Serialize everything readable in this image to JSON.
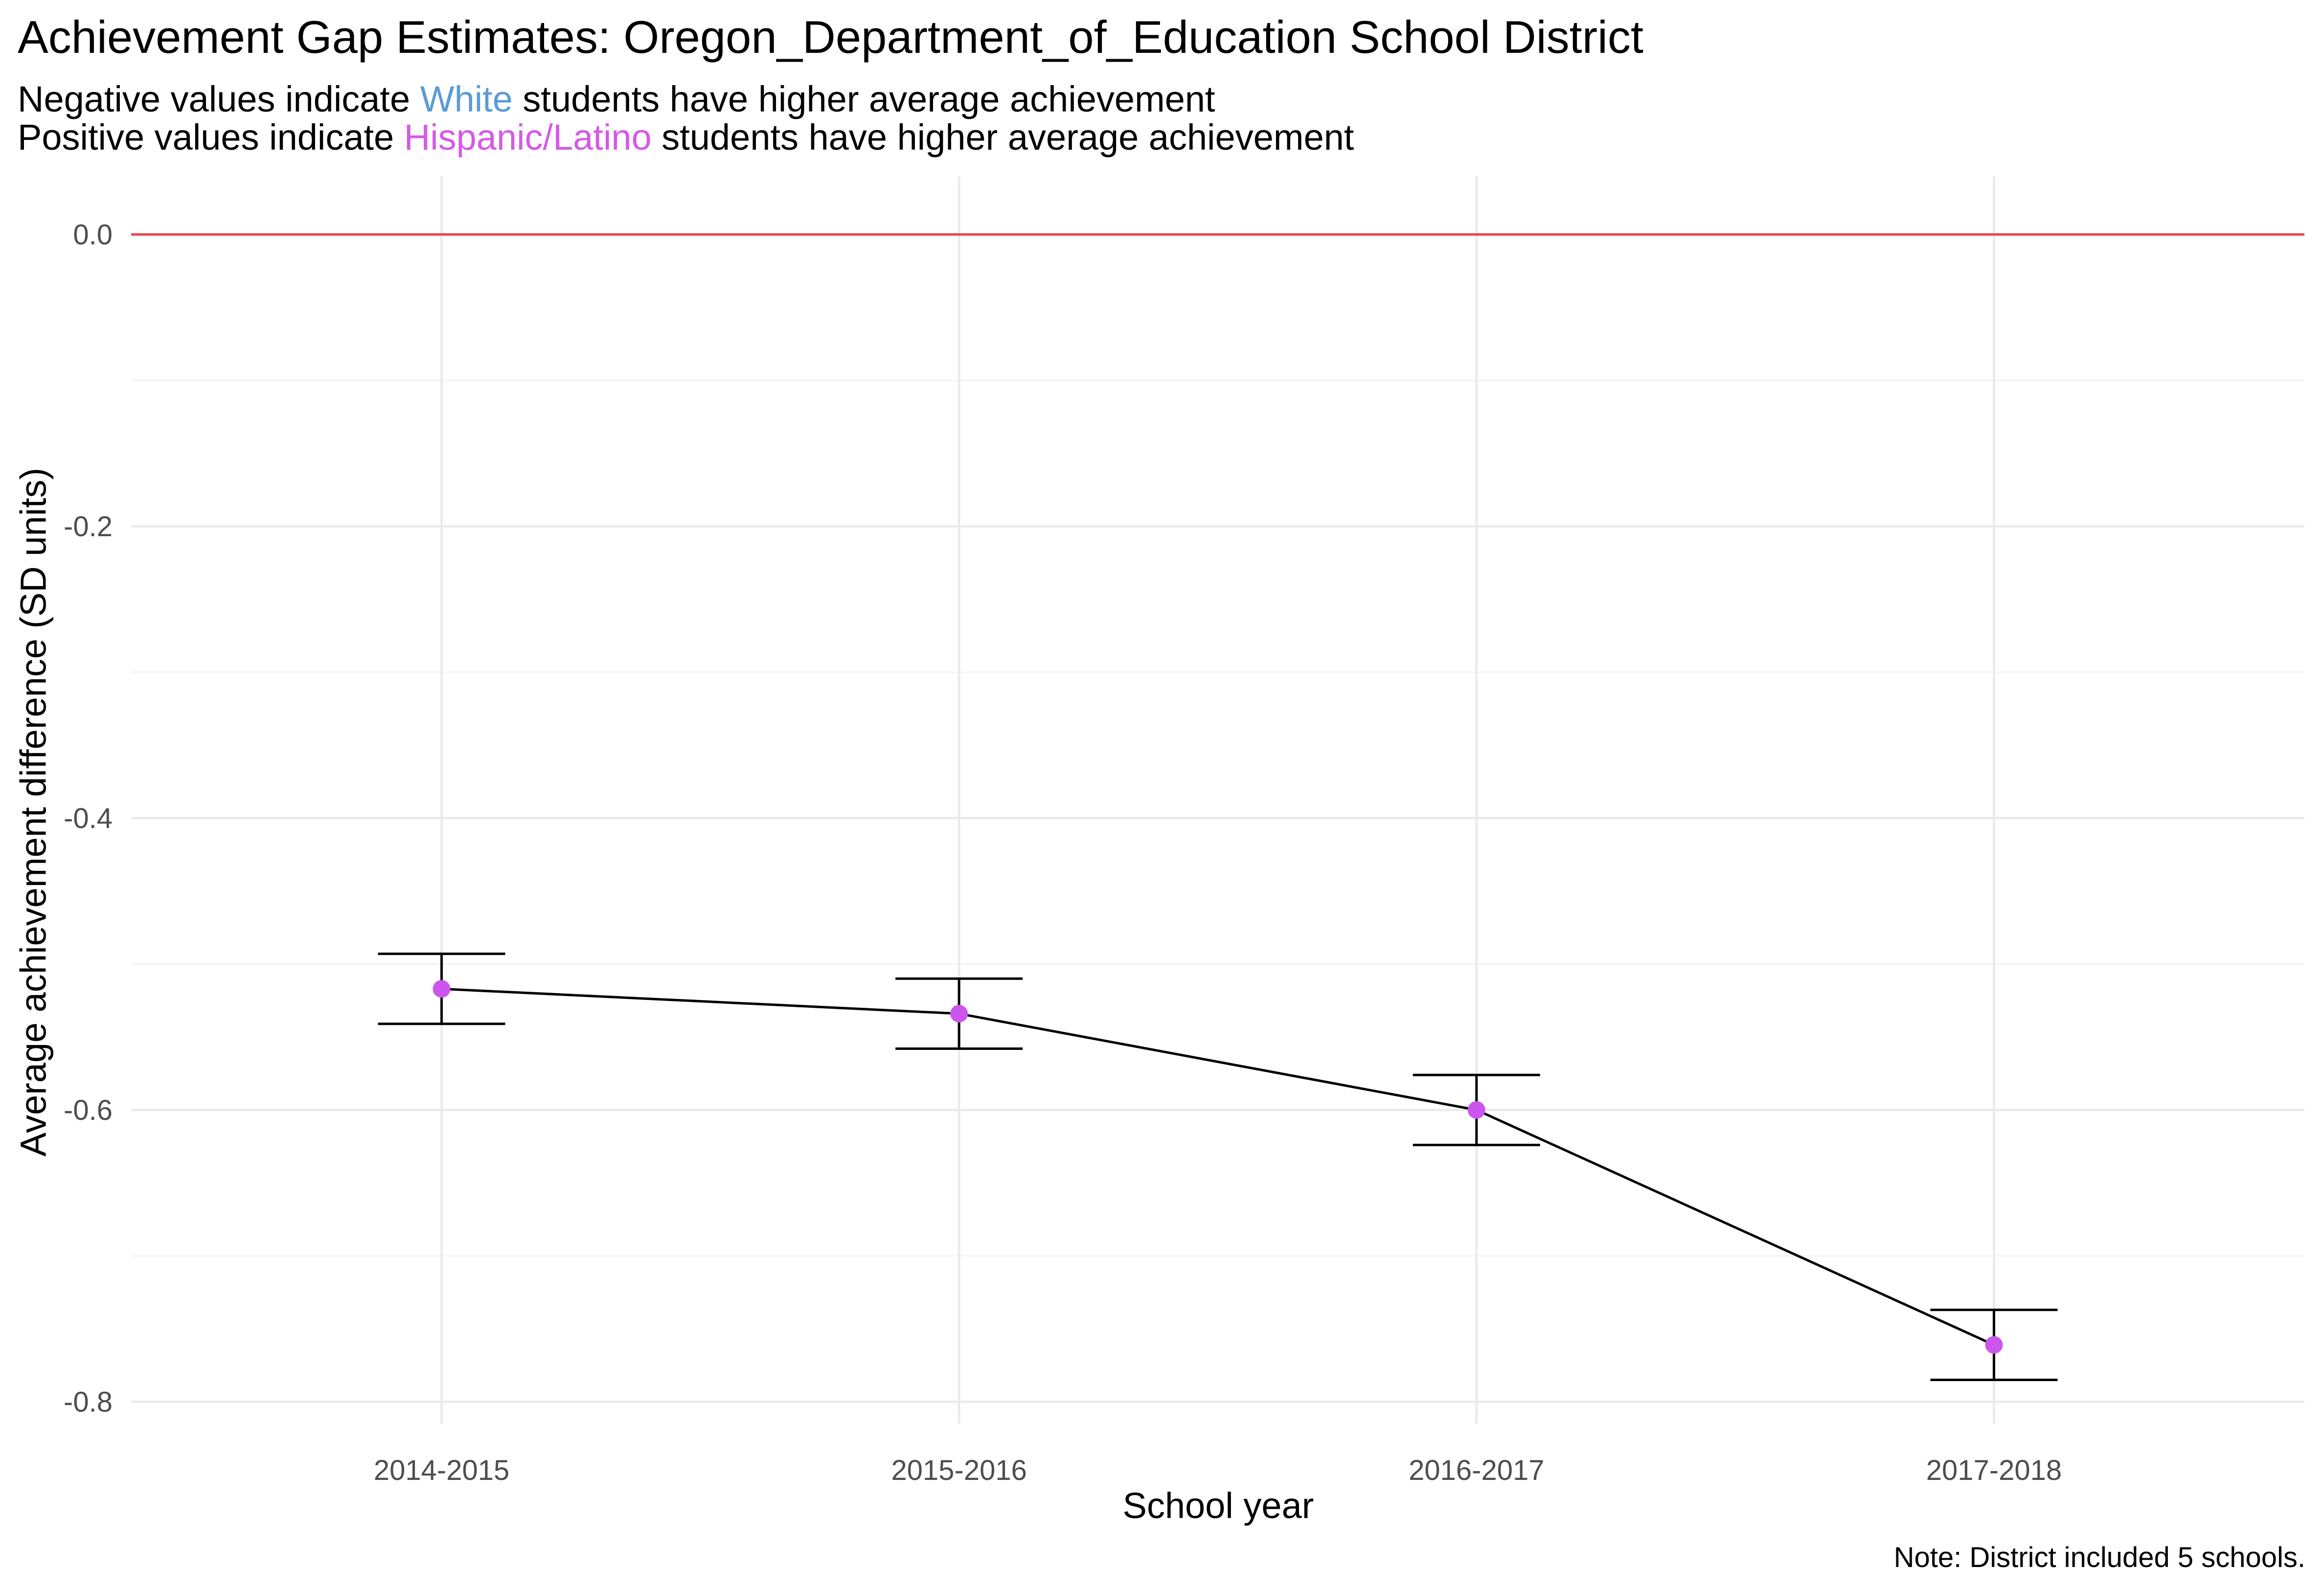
{
  "chart_data": {
    "type": "line",
    "title": "Achievement Gap Estimates: Oregon_Department_of_Education  School District",
    "subtitle": {
      "line1": {
        "before": "Negative values indicate ",
        "highlight": "White",
        "after": " students have higher average achievement"
      },
      "line2": {
        "before": "Positive values indicate ",
        "highlight": "Hispanic/Latino",
        "after": " students have higher average achievement"
      }
    },
    "xlabel": "School year",
    "ylabel": "Average achievement difference (SD units)",
    "caption": "Note: District included 5 schools.",
    "categories": [
      "2014-2015",
      "2015-2016",
      "2016-2017",
      "2017-2018"
    ],
    "series": [
      {
        "values": [
          -0.517,
          -0.534,
          -0.6,
          -0.761
        ],
        "lower": [
          -0.541,
          -0.558,
          -0.624,
          -0.785
        ],
        "upper": [
          -0.493,
          -0.51,
          -0.576,
          -0.737
        ]
      }
    ],
    "ylim": [
      -0.815,
      0.04
    ],
    "yticks": [
      0.0,
      -0.2,
      -0.4,
      -0.6,
      -0.8
    ],
    "ytick_labels": [
      "0.0",
      "-0.2",
      "-0.4",
      "-0.6",
      "-0.8"
    ],
    "reference_line": 0,
    "grid": true,
    "colors": {
      "white": "#5b9bd5",
      "hispanic": "#d55ae6",
      "point": "#cc55ee",
      "reference": "#e8474f",
      "line": "#000000",
      "grid": "#ebebeb"
    }
  }
}
